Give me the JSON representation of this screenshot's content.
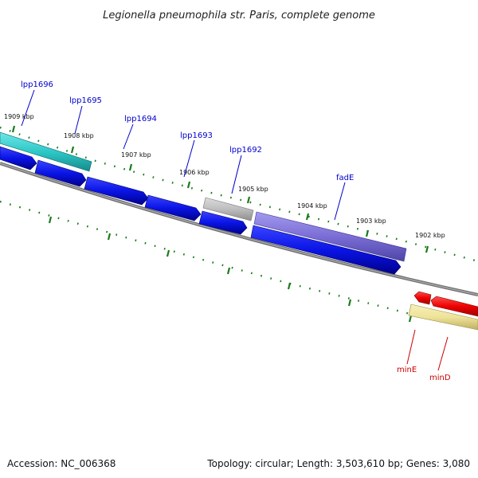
{
  "title": "Legionella pneumophila str. Paris, complete genome",
  "footer": {
    "accession": "Accession: NC_006368",
    "topology": "Topology: circular; Length: 3,503,610 bp; Genes: 3,080"
  },
  "colors": {
    "backbone": "#808080",
    "tick": "#1a7a1a",
    "forward_label": "#0000cc",
    "reverse_label": "#cc0000",
    "blue_gene": "#0a14e6",
    "cyan_gene": "#2ec8c8",
    "grey_gene": "#bdbdbd",
    "purple_gene": "#7a6ed6",
    "red_gene": "#ee0000",
    "yellow_gene": "#eee39a"
  },
  "kbp_labels": [
    "1909 kbp",
    "1908 kbp",
    "1907 kbp",
    "1906 kbp",
    "1905 kbp",
    "1904 kbp",
    "1903 kbp",
    "1902 kbp"
  ],
  "gene_labels": [
    {
      "name": "lpp1696",
      "strand": "forward"
    },
    {
      "name": "lpp1695",
      "strand": "forward"
    },
    {
      "name": "lpp1694",
      "strand": "forward"
    },
    {
      "name": "lpp1693",
      "strand": "forward"
    },
    {
      "name": "lpp1692",
      "strand": "forward"
    },
    {
      "name": "fadE",
      "strand": "forward"
    },
    {
      "name": "minE",
      "strand": "reverse"
    },
    {
      "name": "minD",
      "strand": "reverse"
    }
  ]
}
